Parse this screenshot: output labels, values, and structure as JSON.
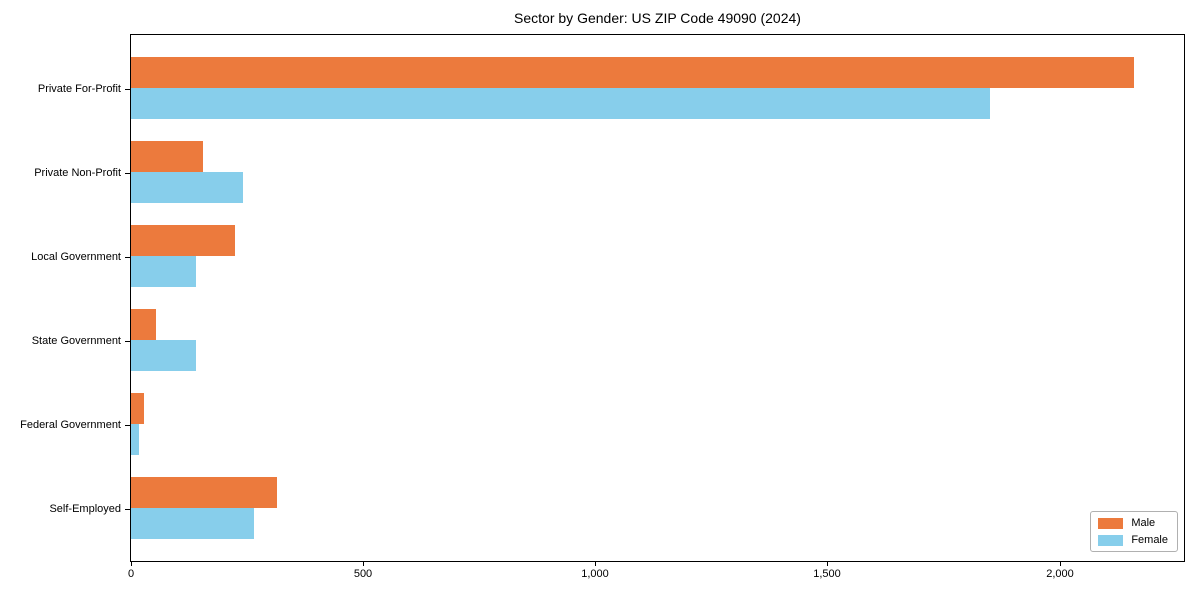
{
  "chart_data": {
    "type": "bar",
    "orientation": "horizontal",
    "title": "Sector by Gender: US ZIP Code 49090 (2024)",
    "categories": [
      "Private For-Profit",
      "Private Non-Profit",
      "Local Government",
      "State Government",
      "Federal Government",
      "Self-Employed"
    ],
    "series": [
      {
        "name": "Male",
        "color": "#ec7a3d",
        "values": [
          2160,
          155,
          225,
          54,
          28,
          315
        ]
      },
      {
        "name": "Female",
        "color": "#87ceeb",
        "values": [
          1850,
          242,
          140,
          140,
          17,
          264
        ]
      }
    ],
    "xlabel": "",
    "ylabel": "",
    "xlim": [
      0,
      2268
    ],
    "xticks": [
      0,
      500,
      1000,
      1500,
      2000
    ],
    "xtick_labels": [
      "0",
      "500",
      "1,000",
      "1,500",
      "2,000"
    ],
    "legend_position": "lower right",
    "grid": false,
    "axis_color": "#000000",
    "background_color": "#ffffff"
  }
}
